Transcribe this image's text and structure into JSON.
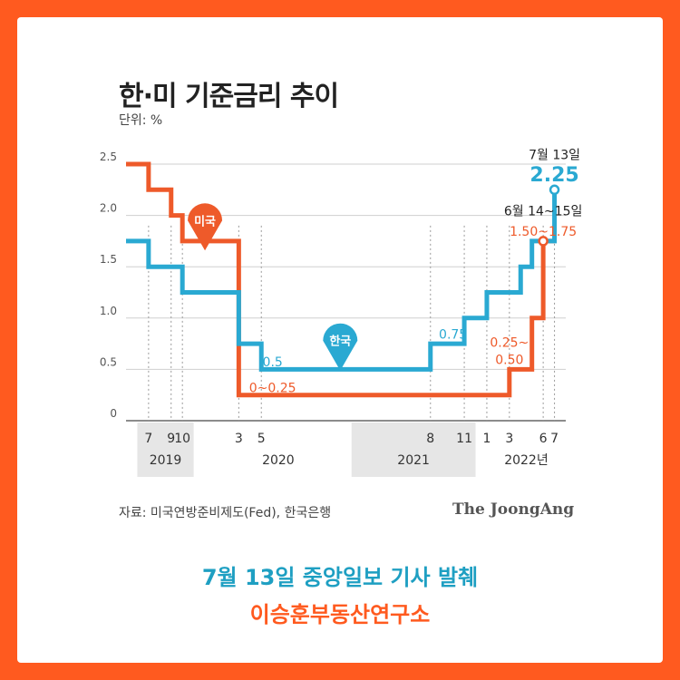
{
  "title": "한·미 기준금리 추이",
  "unit_label": "단위: %",
  "source": "자료: 미국연방준비제도(Fed), 한국은행",
  "brand": "The JoongAng",
  "footer": {
    "headline": "7월 13일 중앙일보 기사 발췌",
    "org": "이승훈부동산연구소"
  },
  "colors": {
    "us": "#ee5a2a",
    "korea": "#2aa9d2",
    "background": "#ff5a1f"
  },
  "chart_data": {
    "type": "line",
    "step": true,
    "x_domain": [
      "2019-05",
      "2022-08"
    ],
    "ylim": [
      0,
      2.5
    ],
    "y_ticks": [
      {
        "value": 0,
        "label": "0"
      },
      {
        "value": 0.5,
        "label": "0.5"
      },
      {
        "value": 1.0,
        "label": "1.0"
      },
      {
        "value": 1.5,
        "label": "1.5"
      },
      {
        "value": 2.0,
        "label": "2.0"
      },
      {
        "value": 2.5,
        "label": "2.5"
      }
    ],
    "month_ticks": [
      {
        "date": "2019-07",
        "label": "7"
      },
      {
        "date": "2019-09",
        "label": "9"
      },
      {
        "date": "2019-10",
        "label": "10"
      },
      {
        "date": "2020-03",
        "label": "3"
      },
      {
        "date": "2020-05",
        "label": "5"
      },
      {
        "date": "2021-08",
        "label": "8"
      },
      {
        "date": "2021-11",
        "label": "11"
      },
      {
        "date": "2022-01",
        "label": "1"
      },
      {
        "date": "2022-03",
        "label": "3"
      },
      {
        "date": "2022-06",
        "label": "6"
      },
      {
        "date": "2022-07",
        "label": "7"
      }
    ],
    "year_labels": [
      {
        "label": "2019",
        "from": "2019-06",
        "to": "2019-11",
        "shaded": true
      },
      {
        "label": "2020",
        "from": "2020-01",
        "to": "2020-12",
        "shaded": false
      },
      {
        "label": "2021",
        "from": "2021-01",
        "to": "2021-12",
        "shaded": true
      },
      {
        "label": "2022년",
        "from": "2022-01",
        "to": "2022-08",
        "shaded": false
      }
    ],
    "series": [
      {
        "name": "미국",
        "color": "#ee5a2a",
        "points": [
          {
            "x": "2019-05",
            "y": 2.5
          },
          {
            "x": "2019-07",
            "y": 2.25
          },
          {
            "x": "2019-09",
            "y": 2.0
          },
          {
            "x": "2019-10",
            "y": 1.75
          },
          {
            "x": "2020-03",
            "y": 1.25
          },
          {
            "x": "2020-03",
            "y": 0.25
          },
          {
            "x": "2022-03",
            "y": 0.5
          },
          {
            "x": "2022-05",
            "y": 1.0
          },
          {
            "x": "2022-06",
            "y": 1.75
          }
        ],
        "end": "2022-07"
      },
      {
        "name": "한국",
        "color": "#2aa9d2",
        "points": [
          {
            "x": "2019-05",
            "y": 1.75
          },
          {
            "x": "2019-07",
            "y": 1.5
          },
          {
            "x": "2019-10",
            "y": 1.25
          },
          {
            "x": "2020-03",
            "y": 0.75
          },
          {
            "x": "2020-05",
            "y": 0.5
          },
          {
            "x": "2021-08",
            "y": 0.75
          },
          {
            "x": "2021-11",
            "y": 1.0
          },
          {
            "x": "2022-01",
            "y": 1.25
          },
          {
            "x": "2022-04",
            "y": 1.5
          },
          {
            "x": "2022-05",
            "y": 1.75
          },
          {
            "x": "2022-07",
            "y": 2.25
          }
        ],
        "end": "2022-07"
      }
    ],
    "annotations": [
      {
        "text": "7월 13일",
        "x": "2022-07",
        "y": 2.55,
        "color": "#222222"
      },
      {
        "text": "2.25",
        "x": "2022-07",
        "y": 2.33,
        "color": "#2aa9d2",
        "big": true
      },
      {
        "text": "6월 14~15일",
        "x": "2022-06",
        "y": 2.0,
        "color": "#222222"
      },
      {
        "text": "1.50~1.75",
        "x": "2022-06",
        "y": 1.8,
        "color": "#ee5a2a"
      },
      {
        "text": "0.25~",
        "x": "2022-03",
        "y": 0.72,
        "color": "#ee5a2a"
      },
      {
        "text": "0.50",
        "x": "2022-03",
        "y": 0.55,
        "color": "#ee5a2a"
      },
      {
        "text": "0.75",
        "x": "2021-10",
        "y": 0.8,
        "color": "#2aa9d2"
      },
      {
        "text": "0.5",
        "x": "2020-06",
        "y": 0.53,
        "color": "#2aa9d2"
      },
      {
        "text": "0~0.25",
        "x": "2020-06",
        "y": 0.28,
        "color": "#ee5a2a"
      }
    ],
    "markers": [
      {
        "series": "미국",
        "label": "미국",
        "x": "2019-12",
        "y": 1.95,
        "color": "#ee5a2a"
      },
      {
        "series": "한국",
        "label": "한국",
        "x": "2020-12",
        "y": 0.78,
        "color": "#2aa9d2"
      }
    ],
    "dots": [
      {
        "x": "2022-07",
        "y": 2.25,
        "color": "#2aa9d2"
      },
      {
        "x": "2022-06",
        "y": 1.75,
        "color": "#ee5a2a"
      }
    ]
  }
}
